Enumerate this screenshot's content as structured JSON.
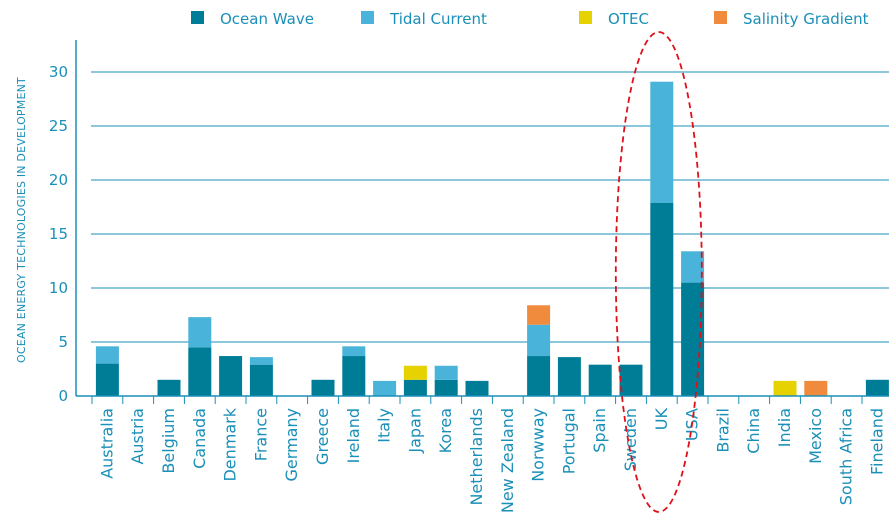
{
  "chart_data": {
    "type": "bar",
    "stacked": true,
    "ylabel": "OCEAN ENERGY TECHNOLOGIES IN DEVELOPMENT",
    "xlabel": "",
    "ylim": [
      0,
      32
    ],
    "yticks": [
      0,
      5,
      10,
      15,
      20,
      25,
      30
    ],
    "grid": true,
    "legend_position": "top",
    "categories": [
      "Australia",
      "Austria",
      "Belgium",
      "Canada",
      "Denmark",
      "France",
      "Germany",
      "Greece",
      "Ireland",
      "Italy",
      "Japan",
      "Korea",
      "Netherlands",
      "New Zealand",
      "Norwway",
      "Portugal",
      "Spain",
      "Sweden",
      "UK",
      "USA",
      "Brazil",
      "China",
      "India",
      "Mexico",
      "South Africa",
      "Fineland"
    ],
    "series": [
      {
        "name": "Ocean Wave",
        "color": "#007d96",
        "values": [
          3,
          0,
          1.5,
          4.5,
          3.7,
          2.9,
          0,
          1.5,
          3.7,
          0,
          1.5,
          1.5,
          1.4,
          0,
          3.7,
          3.6,
          2.9,
          2.9,
          17.9,
          10.5,
          0,
          0,
          0,
          0,
          0,
          1.5
        ]
      },
      {
        "name": "Tidal Current",
        "color": "#49b3d9",
        "values": [
          1.6,
          0,
          0,
          2.8,
          0,
          0.7,
          0,
          0,
          0.9,
          1.4,
          0,
          1.3,
          0,
          0,
          2.9,
          0,
          0,
          0,
          11.2,
          2.9,
          0,
          0,
          0,
          0,
          0,
          0
        ]
      },
      {
        "name": "OTEC",
        "color": "#e6d200",
        "values": [
          0,
          0,
          0,
          0,
          0,
          0,
          0,
          0,
          0,
          0,
          1.3,
          0,
          0,
          0,
          0,
          0,
          0,
          0,
          0,
          0,
          0,
          0,
          1.4,
          0,
          0,
          0
        ]
      },
      {
        "name": "Salinity Gradient",
        "color": "#f08a3c",
        "values": [
          0,
          0,
          0,
          0,
          0,
          0,
          0,
          0,
          0,
          0,
          0,
          0,
          0,
          0,
          1.8,
          0,
          0,
          0,
          0,
          0,
          0,
          0,
          0,
          1.4,
          0,
          0
        ]
      }
    ],
    "annotation": {
      "type": "dashed-ellipse",
      "target_category": "UK",
      "color": "#e0101a"
    },
    "colors": {
      "axis": "#1a8fb8",
      "grid": "#1a8fb8",
      "text": "#1a8fb8"
    }
  }
}
